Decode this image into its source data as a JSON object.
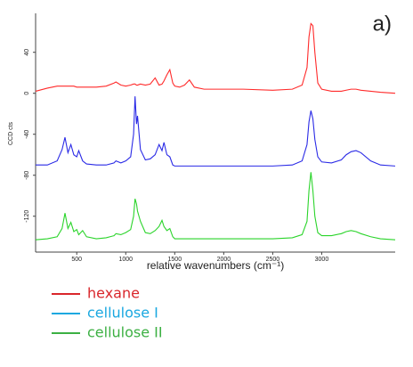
{
  "chart_data": {
    "type": "line",
    "title": "a)",
    "xlabel": "relative wavenumbers (cm⁻¹)",
    "ylabel": "CCD cts",
    "x": [
      80,
      200,
      300,
      350,
      380,
      410,
      440,
      470,
      500,
      520,
      560,
      600,
      700,
      800,
      880,
      900,
      950,
      1000,
      1050,
      1080,
      1095,
      1110,
      1120,
      1150,
      1200,
      1250,
      1300,
      1340,
      1370,
      1390,
      1420,
      1450,
      1480,
      1500,
      1550,
      1600,
      1650,
      1700,
      1800,
      2000,
      2200,
      2500,
      2700,
      2800,
      2850,
      2870,
      2890,
      2910,
      2930,
      2960,
      3000,
      3100,
      3200,
      3250,
      3300,
      3350,
      3400,
      3500,
      3600,
      3750
    ],
    "series": [
      {
        "name": "hexane",
        "color": "#ff2a2a",
        "legend_color": "#d9262b",
        "values": [
          2,
          5,
          7,
          7,
          7,
          7,
          7,
          7,
          6,
          6,
          6,
          6,
          6,
          7,
          10,
          11,
          8,
          7,
          8,
          9,
          9,
          8,
          8,
          9,
          8,
          9,
          15,
          8,
          9,
          12,
          18,
          23,
          10,
          7,
          6,
          8,
          13,
          6,
          4,
          4,
          4,
          3,
          4,
          8,
          25,
          55,
          68,
          66,
          40,
          10,
          4,
          2,
          2,
          3,
          4,
          4,
          3,
          2,
          1,
          0
        ]
      },
      {
        "name": "cellulose I",
        "color": "#2a2ae6",
        "legend_color": "#1aa8e0",
        "values": [
          -70,
          -70,
          -66,
          -55,
          -43,
          -58,
          -50,
          -60,
          -62,
          -56,
          -66,
          -69,
          -70,
          -70,
          -68,
          -66,
          -68,
          -66,
          -62,
          -40,
          -3,
          -30,
          -22,
          -55,
          -65,
          -64,
          -60,
          -50,
          -56,
          -48,
          -60,
          -62,
          -70,
          -71,
          -71,
          -71,
          -71,
          -71,
          -71,
          -71,
          -71,
          -71,
          -70,
          -66,
          -50,
          -28,
          -17,
          -25,
          -45,
          -62,
          -67,
          -68,
          -65,
          -60,
          -57,
          -56,
          -58,
          -66,
          -70,
          -71
        ]
      },
      {
        "name": "cellulose II",
        "color": "#2ad42a",
        "legend_color": "#3cb043",
        "values": [
          -143,
          -142,
          -140,
          -132,
          -117,
          -132,
          -126,
          -135,
          -133,
          -138,
          -134,
          -140,
          -142,
          -141,
          -139,
          -137,
          -138,
          -136,
          -133,
          -120,
          -103,
          -108,
          -115,
          -125,
          -136,
          -137,
          -134,
          -130,
          -124,
          -130,
          -134,
          -132,
          -140,
          -142,
          -142,
          -142,
          -142,
          -142,
          -142,
          -142,
          -142,
          -142,
          -141,
          -138,
          -125,
          -95,
          -77,
          -95,
          -120,
          -136,
          -139,
          -139,
          -137,
          -135,
          -134,
          -135,
          -137,
          -140,
          -142,
          -143
        ]
      }
    ],
    "xlim": [
      80,
      3750
    ],
    "xticks": [
      500,
      1000,
      1500,
      2000,
      2500,
      3000
    ],
    "ylim": [
      -155,
      78
    ],
    "yticks": [
      40,
      0,
      -40,
      -80,
      -120
    ],
    "grid": false,
    "legend": "bottom"
  }
}
